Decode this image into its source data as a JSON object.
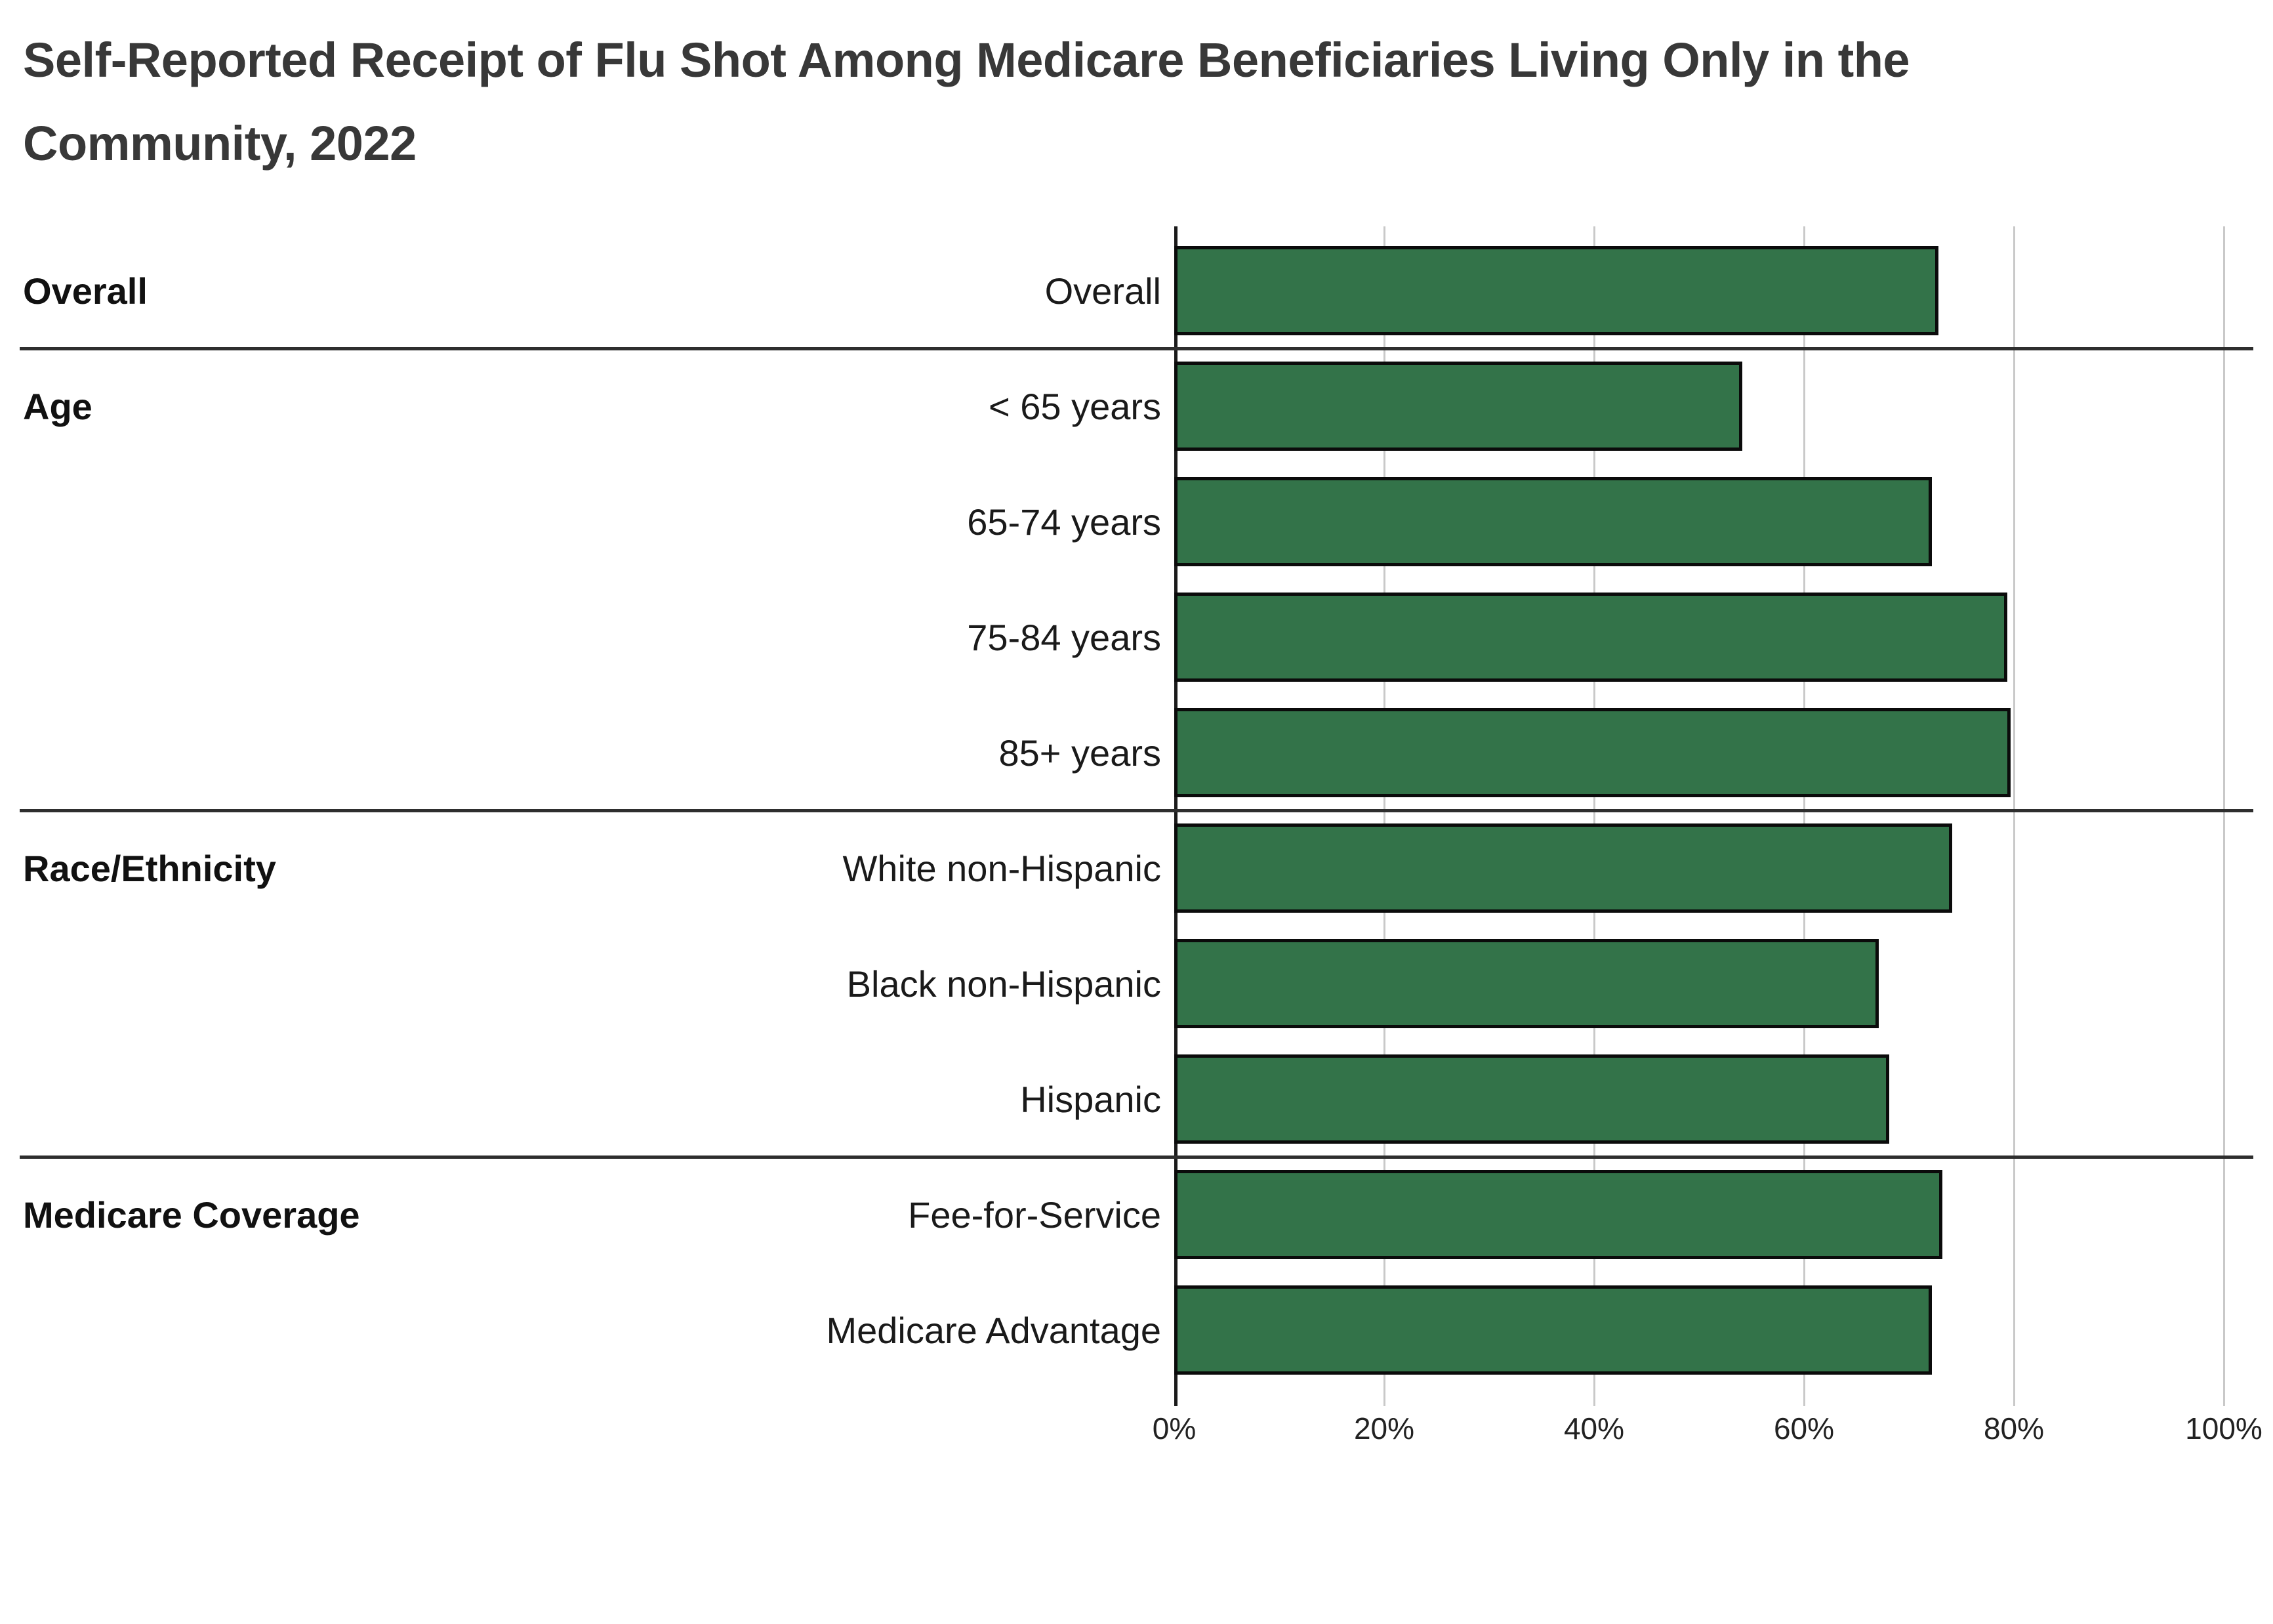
{
  "page": {
    "background": "#ffffff"
  },
  "title_lines": [
    "Self-Reported Receipt of Flu Shot Among Medicare Beneficiaries Living Only in the",
    "Community, 2022"
  ],
  "chart_data": {
    "type": "bar",
    "orientation": "horizontal",
    "title": "Self-Reported Receipt of Flu Shot Among Medicare Beneficiaries Living Only in the Community, 2022",
    "unit": "percent",
    "xlim": [
      0,
      100
    ],
    "grid": true,
    "legend": "none",
    "bar_color": "#337349",
    "bar_border_color": "#0b0b0b",
    "x_axis": {
      "tick_labels": [
        "0%",
        "20%",
        "40%",
        "60%",
        "80%",
        "100%"
      ],
      "tick_values": [
        0,
        20,
        40,
        60,
        80,
        100
      ]
    },
    "groups": [
      {
        "label": "Overall",
        "rows": [
          {
            "label": "Overall",
            "value": 72.8
          }
        ]
      },
      {
        "label": "Age",
        "rows": [
          {
            "label": "< 65 years",
            "value": 54.1
          },
          {
            "label": "65-74 years",
            "value": 72.2
          },
          {
            "label": "75-84 years",
            "value": 79.4
          },
          {
            "label": "85+ years",
            "value": 79.7
          }
        ]
      },
      {
        "label": "Race/Ethnicity",
        "rows": [
          {
            "label": "White non-Hispanic",
            "value": 74.1
          },
          {
            "label": "Black non-Hispanic",
            "value": 67.1
          },
          {
            "label": "Hispanic",
            "value": 68.1
          }
        ]
      },
      {
        "label": "Medicare Coverage",
        "rows": [
          {
            "label": "Fee-for-Service",
            "value": 73.2
          },
          {
            "label": "Medicare Advantage",
            "value": 72.2
          }
        ]
      }
    ]
  }
}
